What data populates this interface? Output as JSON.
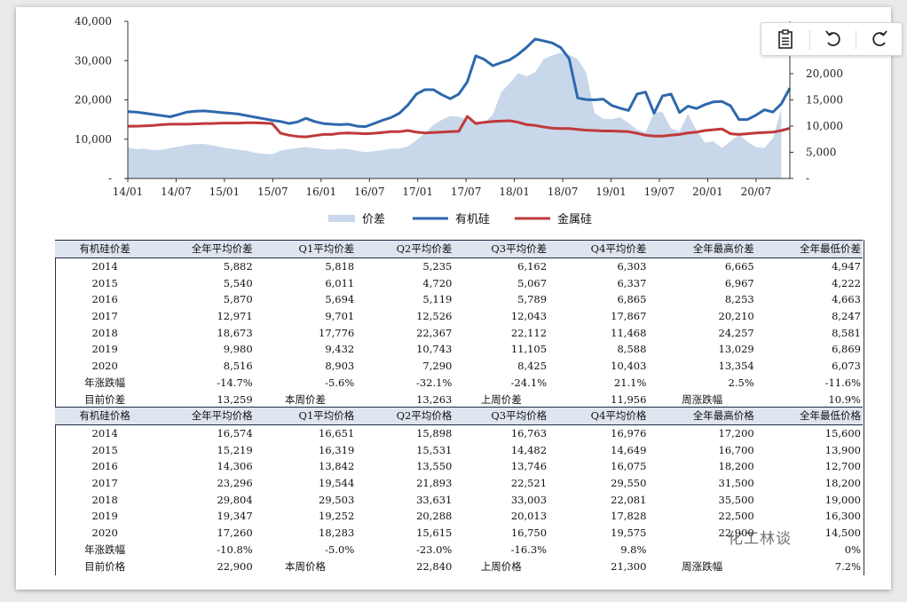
{
  "chart_data": {
    "type": "area+line",
    "x_ticks": [
      "14/01",
      "14/07",
      "15/01",
      "15/07",
      "16/01",
      "16/07",
      "17/01",
      "17/07",
      "18/01",
      "18/07",
      "19/01",
      "19/07",
      "20/01",
      "20/07"
    ],
    "y_left": {
      "ticks": [
        "-",
        "10,000",
        "20,000",
        "30,000",
        "40,000"
      ],
      "range": [
        0,
        40000
      ]
    },
    "y_right": {
      "ticks": [
        "-",
        "5,000",
        "10,000",
        "15,000",
        "20,000",
        "25,000"
      ],
      "range": [
        0,
        30000
      ]
    },
    "series": [
      {
        "name": "价差",
        "type": "area",
        "axis": "right",
        "color": "#c9d7ea",
        "points": [
          [
            0,
            5900
          ],
          [
            1,
            5600
          ],
          [
            2,
            5700
          ],
          [
            3,
            5400
          ],
          [
            4,
            5500
          ],
          [
            5,
            5800
          ],
          [
            6,
            6100
          ],
          [
            7,
            6400
          ],
          [
            8,
            6600
          ],
          [
            9,
            6600
          ],
          [
            10,
            6300
          ],
          [
            11,
            6000
          ],
          [
            12,
            5700
          ],
          [
            13,
            5500
          ],
          [
            14,
            5300
          ],
          [
            15,
            4900
          ],
          [
            16,
            4700
          ],
          [
            17,
            4600
          ],
          [
            18,
            5300
          ],
          [
            19,
            5600
          ],
          [
            20,
            5800
          ],
          [
            21,
            6000
          ],
          [
            22,
            5800
          ],
          [
            23,
            5600
          ],
          [
            24,
            5500
          ],
          [
            25,
            5700
          ],
          [
            26,
            5600
          ],
          [
            27,
            5300
          ],
          [
            28,
            5000
          ],
          [
            29,
            5200
          ],
          [
            30,
            5400
          ],
          [
            31,
            5700
          ],
          [
            32,
            5700
          ],
          [
            33,
            6100
          ],
          [
            34,
            7300
          ],
          [
            35,
            8600
          ],
          [
            36,
            10200
          ],
          [
            37,
            11200
          ],
          [
            38,
            11900
          ],
          [
            39,
            11800
          ],
          [
            40,
            11200
          ],
          [
            41,
            10900
          ],
          [
            42,
            10600
          ],
          [
            43,
            12200
          ],
          [
            44,
            16500
          ],
          [
            45,
            18200
          ],
          [
            46,
            20100
          ],
          [
            47,
            19500
          ],
          [
            48,
            20300
          ],
          [
            49,
            22800
          ],
          [
            50,
            23500
          ],
          [
            51,
            24000
          ],
          [
            52,
            23600
          ],
          [
            53,
            22800
          ],
          [
            54,
            20200
          ],
          [
            55,
            12500
          ],
          [
            56,
            11400
          ],
          [
            57,
            11300
          ],
          [
            58,
            11700
          ],
          [
            59,
            10600
          ],
          [
            60,
            9300
          ],
          [
            61,
            8800
          ],
          [
            62,
            12600
          ],
          [
            63,
            12700
          ],
          [
            64,
            9600
          ],
          [
            65,
            9000
          ],
          [
            66,
            12300
          ],
          [
            67,
            9200
          ],
          [
            68,
            6800
          ],
          [
            69,
            7100
          ],
          [
            70,
            5800
          ],
          [
            71,
            7100
          ],
          [
            72,
            8400
          ],
          [
            73,
            7000
          ],
          [
            74,
            6000
          ],
          [
            75,
            5800
          ],
          [
            76,
            7700
          ],
          [
            77,
            13200
          ]
        ]
      },
      {
        "name": "有机硅",
        "type": "line",
        "axis": "left",
        "color": "#2e68ad",
        "points": [
          [
            0,
            17000
          ],
          [
            1,
            16900
          ],
          [
            2,
            16600
          ],
          [
            3,
            16300
          ],
          [
            4,
            16000
          ],
          [
            5,
            15700
          ],
          [
            6,
            16300
          ],
          [
            7,
            16900
          ],
          [
            8,
            17100
          ],
          [
            9,
            17200
          ],
          [
            10,
            17000
          ],
          [
            11,
            16800
          ],
          [
            12,
            16600
          ],
          [
            13,
            16400
          ],
          [
            14,
            16000
          ],
          [
            15,
            15600
          ],
          [
            16,
            15200
          ],
          [
            17,
            14800
          ],
          [
            18,
            14500
          ],
          [
            19,
            14000
          ],
          [
            20,
            14400
          ],
          [
            21,
            15300
          ],
          [
            22,
            14500
          ],
          [
            23,
            14000
          ],
          [
            24,
            13800
          ],
          [
            25,
            13700
          ],
          [
            26,
            13800
          ],
          [
            27,
            13300
          ],
          [
            28,
            13200
          ],
          [
            29,
            14000
          ],
          [
            30,
            14800
          ],
          [
            31,
            15500
          ],
          [
            32,
            16600
          ],
          [
            33,
            18700
          ],
          [
            34,
            21500
          ],
          [
            35,
            22600
          ],
          [
            36,
            22600
          ],
          [
            37,
            21300
          ],
          [
            38,
            20300
          ],
          [
            39,
            21500
          ],
          [
            40,
            24600
          ],
          [
            41,
            31200
          ],
          [
            42,
            30300
          ],
          [
            43,
            28700
          ],
          [
            44,
            29500
          ],
          [
            45,
            30200
          ],
          [
            46,
            31600
          ],
          [
            47,
            33400
          ],
          [
            48,
            35500
          ],
          [
            49,
            35000
          ],
          [
            50,
            34500
          ],
          [
            51,
            33300
          ],
          [
            52,
            30500
          ],
          [
            53,
            20500
          ],
          [
            54,
            20100
          ],
          [
            55,
            20000
          ],
          [
            56,
            20200
          ],
          [
            57,
            18600
          ],
          [
            58,
            17900
          ],
          [
            59,
            17300
          ],
          [
            60,
            21500
          ],
          [
            61,
            22000
          ],
          [
            62,
            16600
          ],
          [
            63,
            21000
          ],
          [
            64,
            21500
          ],
          [
            65,
            16800
          ],
          [
            66,
            18400
          ],
          [
            67,
            17800
          ],
          [
            68,
            18800
          ],
          [
            69,
            19500
          ],
          [
            70,
            19600
          ],
          [
            71,
            18500
          ],
          [
            72,
            15000
          ],
          [
            73,
            15000
          ],
          [
            74,
            16100
          ],
          [
            75,
            17500
          ],
          [
            76,
            16900
          ],
          [
            77,
            19000
          ],
          [
            78,
            23000
          ]
        ]
      },
      {
        "name": "金属硅",
        "type": "line",
        "axis": "left",
        "color": "#c0393b",
        "points": [
          [
            0,
            13300
          ],
          [
            1,
            13300
          ],
          [
            2,
            13400
          ],
          [
            3,
            13500
          ],
          [
            4,
            13700
          ],
          [
            5,
            13800
          ],
          [
            6,
            13800
          ],
          [
            7,
            13800
          ],
          [
            8,
            13900
          ],
          [
            9,
            14000
          ],
          [
            10,
            14000
          ],
          [
            11,
            14100
          ],
          [
            12,
            14100
          ],
          [
            13,
            14100
          ],
          [
            14,
            14200
          ],
          [
            15,
            14200
          ],
          [
            16,
            14100
          ],
          [
            17,
            14000
          ],
          [
            18,
            11500
          ],
          [
            19,
            11000
          ],
          [
            20,
            10700
          ],
          [
            21,
            10600
          ],
          [
            22,
            10900
          ],
          [
            23,
            11200
          ],
          [
            24,
            11200
          ],
          [
            25,
            11500
          ],
          [
            26,
            11600
          ],
          [
            27,
            11500
          ],
          [
            28,
            11400
          ],
          [
            29,
            11500
          ],
          [
            30,
            11700
          ],
          [
            31,
            11900
          ],
          [
            32,
            11900
          ],
          [
            33,
            12200
          ],
          [
            34,
            11800
          ],
          [
            35,
            11600
          ],
          [
            36,
            11700
          ],
          [
            37,
            11800
          ],
          [
            38,
            11900
          ],
          [
            39,
            12000
          ],
          [
            40,
            15800
          ],
          [
            41,
            14000
          ],
          [
            42,
            14300
          ],
          [
            43,
            14500
          ],
          [
            44,
            14600
          ],
          [
            45,
            14700
          ],
          [
            46,
            14300
          ],
          [
            47,
            13700
          ],
          [
            48,
            13500
          ],
          [
            49,
            13100
          ],
          [
            50,
            12800
          ],
          [
            51,
            12700
          ],
          [
            52,
            12700
          ],
          [
            53,
            12500
          ],
          [
            54,
            12300
          ],
          [
            55,
            12200
          ],
          [
            56,
            12100
          ],
          [
            57,
            12100
          ],
          [
            58,
            12000
          ],
          [
            59,
            11900
          ],
          [
            60,
            11500
          ],
          [
            61,
            11000
          ],
          [
            62,
            10800
          ],
          [
            63,
            10800
          ],
          [
            64,
            11000
          ],
          [
            65,
            11200
          ],
          [
            66,
            11600
          ],
          [
            67,
            11800
          ],
          [
            68,
            12200
          ],
          [
            69,
            12400
          ],
          [
            70,
            12600
          ],
          [
            71,
            11400
          ],
          [
            72,
            11200
          ],
          [
            73,
            11400
          ],
          [
            74,
            11600
          ],
          [
            75,
            11700
          ],
          [
            76,
            11800
          ],
          [
            77,
            12200
          ],
          [
            78,
            12800
          ]
        ]
      }
    ],
    "legend": [
      "价差",
      "有机硅",
      "金属硅"
    ],
    "legend_position": "bottom"
  },
  "toolbar": {
    "icons": [
      "clipboard-icon",
      "undo-icon",
      "redo-icon"
    ]
  },
  "table1": {
    "headers": [
      "有机硅价差",
      "全年平均价差",
      "Q1平均价差",
      "Q2平均价差",
      "Q3平均价差",
      "Q4平均价差",
      "全年最高价差",
      "全年最低价差"
    ],
    "rows": [
      [
        "2014",
        "5,882",
        "5,818",
        "5,235",
        "6,162",
        "6,303",
        "6,665",
        "4,947"
      ],
      [
        "2015",
        "5,540",
        "6,011",
        "4,720",
        "5,067",
        "6,337",
        "6,967",
        "4,222"
      ],
      [
        "2016",
        "5,870",
        "5,694",
        "5,119",
        "5,789",
        "6,865",
        "8,253",
        "4,663"
      ],
      [
        "2017",
        "12,971",
        "9,701",
        "12,526",
        "12,043",
        "17,867",
        "20,210",
        "8,247"
      ],
      [
        "2018",
        "18,673",
        "17,776",
        "22,367",
        "22,112",
        "11,468",
        "24,257",
        "8,581"
      ],
      [
        "2019",
        "9,980",
        "9,432",
        "10,743",
        "11,105",
        "8,588",
        "13,029",
        "6,869"
      ],
      [
        "2020",
        "8,516",
        "8,903",
        "7,290",
        "8,425",
        "10,403",
        "13,354",
        "6,073"
      ],
      [
        "年涨跌幅",
        "-14.7%",
        "-5.6%",
        "-32.1%",
        "-24.1%",
        "21.1%",
        "2.5%",
        "-11.6%"
      ]
    ],
    "current": [
      "目前价差",
      "13,259",
      "本周价差",
      "13,263",
      "上周价差",
      "11,956",
      "周涨跌幅",
      "10.9%"
    ]
  },
  "table2": {
    "headers": [
      "有机硅价格",
      "全年平均价格",
      "Q1平均价格",
      "Q2平均价格",
      "Q3平均价格",
      "Q4平均价格",
      "全年最高价格",
      "全年最低价格"
    ],
    "rows": [
      [
        "2014",
        "16,574",
        "16,651",
        "15,898",
        "16,763",
        "16,976",
        "17,200",
        "15,600"
      ],
      [
        "2015",
        "15,219",
        "16,319",
        "15,531",
        "14,482",
        "14,649",
        "16,700",
        "13,900"
      ],
      [
        "2016",
        "14,306",
        "13,842",
        "13,550",
        "13,746",
        "16,075",
        "18,200",
        "12,700"
      ],
      [
        "2017",
        "23,296",
        "19,544",
        "21,893",
        "22,521",
        "29,550",
        "31,500",
        "18,200"
      ],
      [
        "2018",
        "29,804",
        "29,503",
        "33,631",
        "33,003",
        "22,081",
        "35,500",
        "19,000"
      ],
      [
        "2019",
        "19,347",
        "19,252",
        "20,288",
        "20,013",
        "17,828",
        "22,500",
        "16,300"
      ],
      [
        "2020",
        "17,260",
        "18,283",
        "15,615",
        "16,750",
        "19,575",
        "22,900",
        "14,500"
      ],
      [
        "年涨跌幅",
        "-10.8%",
        "-5.0%",
        "-23.0%",
        "-16.3%",
        "9.8%",
        "",
        "0%"
      ]
    ],
    "current": [
      "目前价格",
      "22,900",
      "本周价格",
      "22,840",
      "上周价格",
      "21,300",
      "周涨跌幅",
      "7.2%"
    ]
  },
  "watermark": "化工林谈"
}
